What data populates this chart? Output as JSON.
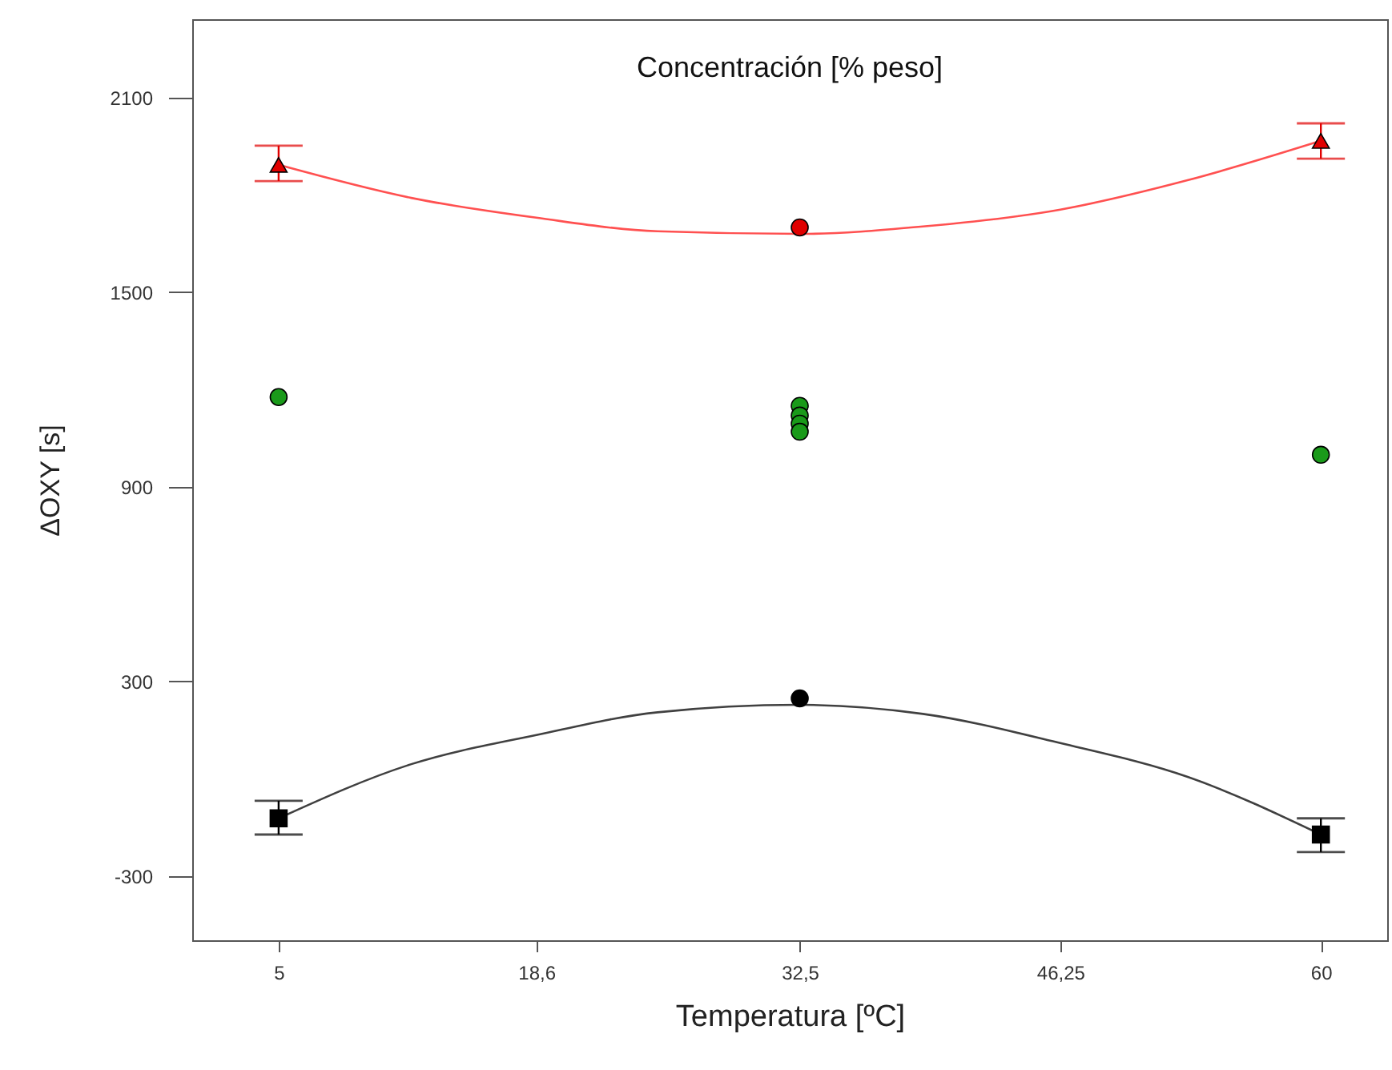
{
  "chart_data": {
    "type": "scatter",
    "title": "Concentración [% peso]",
    "xlabel": "Temperatura [ºC]",
    "ylabel": "ΔOXY [s]",
    "xlim": [
      0.44,
      63.5
    ],
    "ylim": [
      -498,
      2342
    ],
    "xticks": [
      5,
      {
        "value": 18.6,
        "label": "18,6"
      },
      {
        "value": 32.5,
        "label": "32,5"
      },
      {
        "value": 46.25,
        "label": "46,25"
      },
      60
    ],
    "yticks": [
      -300,
      300,
      900,
      1500,
      2100
    ],
    "grid": false,
    "series": [
      {
        "type": "line",
        "color": "#ff5050",
        "marker": "none",
        "line_style": "solid",
        "x": [
          5,
          12,
          18.6,
          25,
          32.5,
          39,
          46.25,
          53,
          60
        ],
        "values": [
          1893,
          1791,
          1730,
          1688,
          1680,
          1703,
          1755,
          1846,
          1967
        ]
      },
      {
        "type": "line",
        "color": "#404040",
        "marker": "none",
        "line_style": "solid",
        "x": [
          5,
          12,
          18.6,
          25,
          32.5,
          39,
          46.25,
          53,
          60
        ],
        "values": [
          -122,
          45,
          135,
          205,
          228,
          200,
          110,
          5,
          -172
        ]
      },
      {
        "color": "#e00000",
        "marker": "triangle",
        "x": [
          5,
          60
        ],
        "values": [
          1893,
          1967
        ],
        "errors": [
          [
            1843,
            1952
          ],
          [
            1912,
            2021
          ]
        ]
      },
      {
        "color": "#e00000",
        "marker": "circle",
        "x": [
          32.5
        ],
        "values": [
          1700
        ]
      },
      {
        "color": "#1a9a1a",
        "marker": "circle",
        "x": [
          5,
          32.5,
          32.5,
          32.5,
          32.5,
          60
        ],
        "values": [
          1177,
          1150,
          1120,
          1095,
          1070,
          999
        ]
      },
      {
        "color": "#000000",
        "marker": "square",
        "x": [
          5,
          60
        ],
        "values": [
          -122,
          -172
        ],
        "errors": [
          [
            -172,
            -68
          ],
          [
            -226,
            -122
          ]
        ]
      },
      {
        "color": "#000000",
        "marker": "circle",
        "x": [
          32.5
        ],
        "values": [
          248
        ]
      }
    ]
  }
}
